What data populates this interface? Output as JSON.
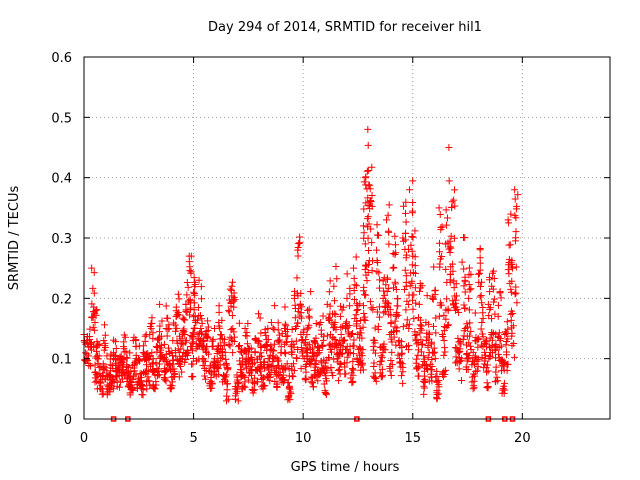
{
  "chart_data": {
    "type": "scatter",
    "title": "Day 294 of 2014, SRMTID for receiver hil1",
    "xlabel": "GPS time / hours",
    "ylabel": "SRMTID / TECUs",
    "xlim": [
      0,
      24
    ],
    "ylim": [
      0,
      0.6
    ],
    "x_ticks": [
      0,
      5,
      10,
      15,
      20
    ],
    "y_ticks": [
      0,
      0.1,
      0.2,
      0.3,
      0.4,
      0.5,
      0.6
    ],
    "x_tick_labels": [
      "0",
      "5",
      "10",
      "15",
      "20"
    ],
    "y_tick_labels": [
      "0",
      "0.1",
      "0.2",
      "0.3",
      "0.4",
      "0.5",
      "0.6"
    ],
    "grid": true,
    "marker": "plus",
    "color": "#ff0000",
    "series": [
      {
        "name": "SRMTID",
        "x": [
          0.0,
          0.2,
          0.35,
          0.5,
          0.6,
          0.75,
          0.9,
          1.05,
          1.2,
          1.35,
          1.5,
          1.65,
          1.8,
          1.95,
          2.1,
          2.25,
          2.4,
          2.55,
          2.7,
          2.85,
          3.0,
          3.15,
          3.3,
          3.45,
          3.6,
          3.75,
          3.9,
          4.05,
          4.2,
          4.35,
          4.5,
          4.65,
          4.8,
          4.9,
          5.0,
          5.1,
          5.25,
          5.4,
          5.55,
          5.7,
          5.85,
          6.0,
          6.15,
          6.3,
          6.45,
          6.6,
          6.75,
          6.9,
          7.05,
          7.2,
          7.35,
          7.5,
          7.65,
          7.8,
          7.95,
          8.1,
          8.25,
          8.4,
          8.55,
          8.7,
          8.85,
          9.0,
          9.15,
          9.3,
          9.45,
          9.6,
          9.75,
          9.9,
          10.05,
          10.2,
          10.35,
          10.5,
          10.65,
          10.8,
          10.95,
          11.1,
          11.25,
          11.4,
          11.55,
          11.7,
          11.85,
          12.0,
          12.15,
          12.3,
          12.45,
          12.6,
          12.75,
          12.85,
          12.95,
          13.05,
          13.2,
          13.35,
          13.5,
          13.65,
          13.8,
          13.95,
          14.1,
          14.25,
          14.4,
          14.55,
          14.7,
          14.85,
          15.0,
          15.15,
          15.3,
          15.45,
          15.6,
          15.75,
          15.9,
          16.05,
          16.2,
          16.35,
          16.5,
          16.65,
          16.8,
          16.95,
          17.1,
          17.25,
          17.4,
          17.55,
          17.7,
          17.85,
          18.0,
          18.15,
          18.3,
          18.45,
          18.6,
          18.75,
          18.9,
          19.05,
          19.2,
          19.35,
          19.5,
          19.65
        ],
        "y": [
          0.14,
          0.12,
          0.25,
          0.16,
          0.1,
          0.07,
          0.13,
          0.05,
          0.09,
          0.11,
          0.08,
          0.1,
          0.12,
          0.09,
          0.07,
          0.13,
          0.1,
          0.06,
          0.11,
          0.09,
          0.14,
          0.08,
          0.12,
          0.19,
          0.1,
          0.15,
          0.09,
          0.13,
          0.17,
          0.11,
          0.14,
          0.19,
          0.27,
          0.12,
          0.21,
          0.16,
          0.23,
          0.1,
          0.14,
          0.08,
          0.12,
          0.09,
          0.16,
          0.11,
          0.07,
          0.18,
          0.22,
          0.05,
          0.12,
          0.09,
          0.15,
          0.1,
          0.08,
          0.11,
          0.13,
          0.09,
          0.12,
          0.1,
          0.16,
          0.08,
          0.13,
          0.11,
          0.15,
          0.06,
          0.12,
          0.2,
          0.28,
          0.14,
          0.1,
          0.18,
          0.09,
          0.13,
          0.12,
          0.16,
          0.08,
          0.19,
          0.14,
          0.22,
          0.1,
          0.17,
          0.13,
          0.2,
          0.11,
          0.25,
          0.18,
          0.15,
          0.32,
          0.4,
          0.48,
          0.36,
          0.12,
          0.28,
          0.09,
          0.2,
          0.33,
          0.14,
          0.25,
          0.17,
          0.1,
          0.3,
          0.22,
          0.38,
          0.27,
          0.13,
          0.19,
          0.09,
          0.16,
          0.11,
          0.2,
          0.07,
          0.35,
          0.14,
          0.29,
          0.45,
          0.36,
          0.18,
          0.11,
          0.26,
          0.15,
          0.2,
          0.09,
          0.13,
          0.24,
          0.16,
          0.1,
          0.19,
          0.22,
          0.12,
          0.17,
          0.08,
          0.14,
          0.33,
          0.21,
          0.38
        ],
        "y_low": [
          0.09,
          0.08,
          0.12,
          0.06,
          0.05,
          0.04,
          0.06,
          0.04,
          0.05,
          0.06,
          0.05,
          0.06,
          0.07,
          0.05,
          0.04,
          0.06,
          0.05,
          0.04,
          0.06,
          0.05,
          0.07,
          0.05,
          0.07,
          0.1,
          0.06,
          0.08,
          0.05,
          0.07,
          0.09,
          0.06,
          0.08,
          0.1,
          0.12,
          0.07,
          0.11,
          0.09,
          0.12,
          0.06,
          0.08,
          0.05,
          0.07,
          0.05,
          0.08,
          0.06,
          0.03,
          0.09,
          0.11,
          0.03,
          0.06,
          0.05,
          0.08,
          0.06,
          0.04,
          0.06,
          0.07,
          0.05,
          0.07,
          0.06,
          0.08,
          0.04,
          0.07,
          0.06,
          0.08,
          0.03,
          0.07,
          0.1,
          0.14,
          0.08,
          0.06,
          0.09,
          0.05,
          0.07,
          0.06,
          0.08,
          0.04,
          0.1,
          0.07,
          0.11,
          0.06,
          0.09,
          0.07,
          0.1,
          0.06,
          0.12,
          0.09,
          0.08,
          0.16,
          0.2,
          0.24,
          0.18,
          0.06,
          0.14,
          0.05,
          0.1,
          0.16,
          0.07,
          0.12,
          0.09,
          0.05,
          0.15,
          0.11,
          0.19,
          0.13,
          0.07,
          0.1,
          0.04,
          0.08,
          0.06,
          0.1,
          0.03,
          0.17,
          0.07,
          0.14,
          0.22,
          0.18,
          0.09,
          0.06,
          0.13,
          0.08,
          0.1,
          0.05,
          0.07,
          0.12,
          0.08,
          0.05,
          0.1,
          0.11,
          0.06,
          0.09,
          0.04,
          0.07,
          0.16,
          0.1,
          0.19
        ],
        "y_high": [
          0.16,
          0.15,
          0.25,
          0.2,
          0.14,
          0.1,
          0.17,
          0.08,
          0.12,
          0.14,
          0.11,
          0.13,
          0.16,
          0.12,
          0.1,
          0.17,
          0.13,
          0.09,
          0.15,
          0.12,
          0.18,
          0.11,
          0.16,
          0.19,
          0.14,
          0.2,
          0.12,
          0.17,
          0.22,
          0.15,
          0.19,
          0.25,
          0.29,
          0.16,
          0.26,
          0.21,
          0.25,
          0.14,
          0.19,
          0.11,
          0.16,
          0.13,
          0.21,
          0.15,
          0.1,
          0.23,
          0.24,
          0.08,
          0.16,
          0.13,
          0.2,
          0.14,
          0.11,
          0.15,
          0.18,
          0.12,
          0.16,
          0.14,
          0.21,
          0.11,
          0.17,
          0.15,
          0.2,
          0.09,
          0.16,
          0.26,
          0.32,
          0.19,
          0.14,
          0.24,
          0.13,
          0.17,
          0.16,
          0.21,
          0.11,
          0.25,
          0.19,
          0.27,
          0.14,
          0.22,
          0.18,
          0.26,
          0.15,
          0.3,
          0.24,
          0.2,
          0.42,
          0.45,
          0.51,
          0.46,
          0.16,
          0.36,
          0.13,
          0.27,
          0.42,
          0.19,
          0.33,
          0.23,
          0.14,
          0.39,
          0.29,
          0.45,
          0.35,
          0.18,
          0.25,
          0.12,
          0.22,
          0.15,
          0.27,
          0.1,
          0.36,
          0.19,
          0.38,
          0.47,
          0.46,
          0.24,
          0.15,
          0.34,
          0.2,
          0.27,
          0.12,
          0.18,
          0.31,
          0.21,
          0.14,
          0.25,
          0.29,
          0.16,
          0.23,
          0.11,
          0.19,
          0.37,
          0.28,
          0.39
        ]
      }
    ],
    "gap_markers_x": [
      1.35,
      2.0,
      12.45,
      18.45,
      19.2,
      19.55
    ]
  }
}
